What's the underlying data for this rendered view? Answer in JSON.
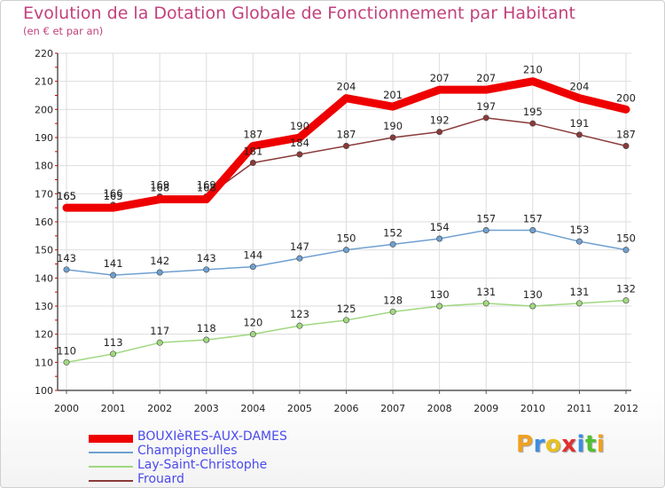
{
  "header": {
    "title": "Evolution de la Dotation Globale de Fonctionnement par Habitant",
    "subtitle": "(en € et par an)"
  },
  "logo": {
    "letters": [
      "P",
      "r",
      "o",
      "x",
      "i",
      "t",
      "i"
    ],
    "colors": [
      "#f0a020",
      "#3c8ee0",
      "#e8c020",
      "#e03030",
      "#3c8ee0",
      "#50c030",
      "#f0a020"
    ]
  },
  "colors": {
    "title": "#c2417c",
    "legend_text": "#4a4aee",
    "grid": "#dddddd",
    "axis": "#555555"
  },
  "chart_data": {
    "type": "line",
    "title": "Evolution de la Dotation Globale de Fonctionnement par Habitant",
    "subtitle": "(en € et par an)",
    "x": [
      2000,
      2001,
      2002,
      2003,
      2004,
      2005,
      2006,
      2007,
      2008,
      2009,
      2010,
      2011,
      2012
    ],
    "y_ticks": [
      100,
      110,
      120,
      130,
      140,
      150,
      160,
      170,
      180,
      190,
      200,
      210,
      220
    ],
    "ylim": [
      100,
      220
    ],
    "grid": true,
    "legend_position": "bottom-left",
    "series": [
      {
        "name": "BOUXIèRES-AUX-DAMES",
        "color": "#ee0000",
        "values": [
          165,
          165,
          168,
          168,
          187,
          190,
          204,
          201,
          207,
          207,
          210,
          204,
          200
        ],
        "labels": [
          "165",
          "165",
          "168",
          "168",
          "187",
          "190",
          "204",
          "201",
          "207",
          "207",
          "210",
          "204",
          "200"
        ],
        "style": "bold"
      },
      {
        "name": "Champigneulles",
        "color": "#6fa0d0",
        "values": [
          143,
          141,
          142,
          143,
          144,
          147,
          150,
          152,
          154,
          157,
          157,
          153,
          150
        ],
        "labels": [
          "143",
          "141",
          "142",
          "143",
          "144",
          "147",
          "150",
          "152",
          "154",
          "157",
          "157",
          "153",
          "150"
        ],
        "style": "thin"
      },
      {
        "name": "Lay-Saint-Christophe",
        "color": "#a0d880",
        "values": [
          110,
          113,
          117,
          118,
          120,
          123,
          125,
          128,
          130,
          131,
          130,
          131,
          132
        ],
        "labels": [
          "110",
          "113",
          "117",
          "118",
          "120",
          "123",
          "125",
          "128",
          "130",
          "131",
          "130",
          "131",
          "132"
        ],
        "style": "thin"
      },
      {
        "name": "Frouard",
        "color": "#8a3a3a",
        "values": [
          165,
          166,
          169,
          169,
          181,
          184,
          187,
          190,
          192,
          197,
          195,
          191,
          187
        ],
        "labels": [
          "165",
          "166",
          "169",
          "169",
          "181",
          "184",
          "187",
          "190",
          "192",
          "197",
          "195",
          "191",
          "187"
        ],
        "style": "thin"
      }
    ]
  }
}
